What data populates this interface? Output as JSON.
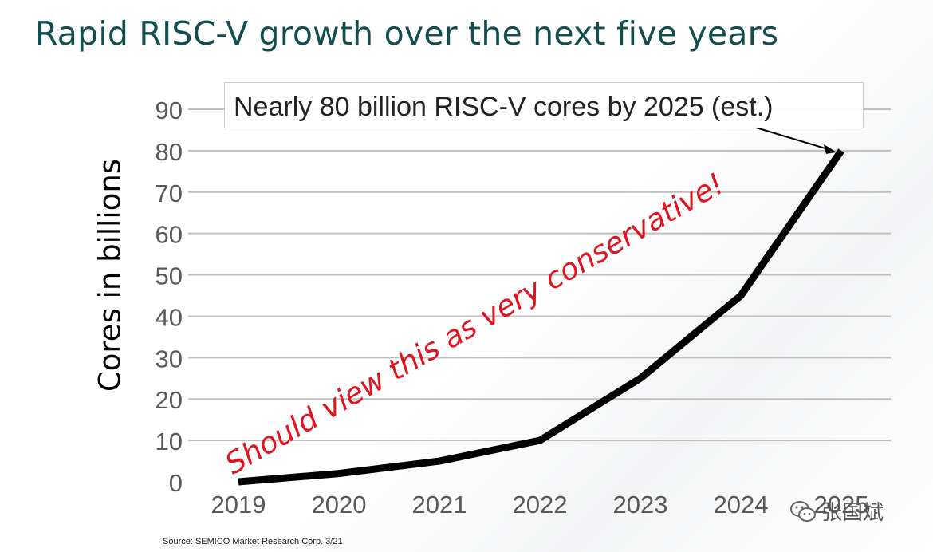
{
  "title": "Rapid RISC-V growth over the next five years",
  "callout": {
    "text": "Nearly 80 billion RISC-V cores by 2025 (est.)"
  },
  "annotation": "Should view this as very conservative!",
  "source": "Source: SEMICO Market Research Corp. 3/21",
  "watermark": {
    "text": "张国斌",
    "icon": "wechat-icon"
  },
  "colors": {
    "title": "#124d4f",
    "line": "#000000",
    "annotation": "#e0141e",
    "grid": "#bfbfbf"
  },
  "chart_data": {
    "type": "line",
    "title": "",
    "xlabel": "",
    "ylabel": "Cores in billions",
    "categories": [
      "2019",
      "2020",
      "2021",
      "2022",
      "2023",
      "2024",
      "2025"
    ],
    "series": [
      {
        "values": [
          0,
          2,
          5,
          10,
          25,
          45,
          80
        ]
      }
    ],
    "ylim": [
      0,
      90
    ],
    "yticks": [
      "0",
      "10",
      "20",
      "30",
      "40",
      "50",
      "60",
      "70",
      "80",
      "90"
    ],
    "grid": true,
    "legend": "none"
  }
}
